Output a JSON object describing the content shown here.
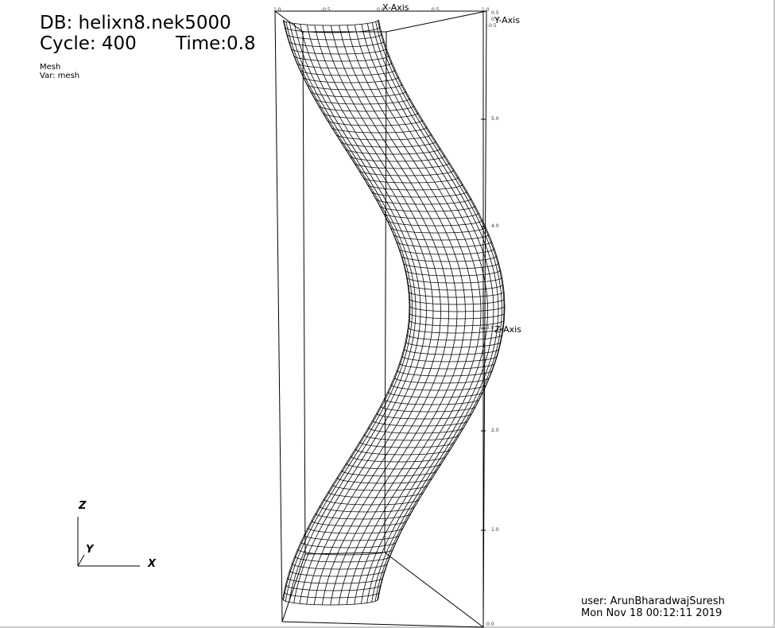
{
  "database": "DB: helixn8.nek5000",
  "cycle": "Cycle: 400",
  "time": "Time:0.8",
  "plot": {
    "type": "Mesh",
    "variable": "Var: mesh"
  },
  "axes": {
    "x_title": "X-Axis",
    "y_title": "Y-Axis",
    "z_title": "Z-Axis",
    "x_ticks": [
      "1.0",
      "-0.5",
      "0.0",
      "0.5",
      "1.0"
    ],
    "y_ticks": [
      "0.5",
      "0.0",
      "-0.5"
    ],
    "z_ticks": [
      "5.0",
      "4.0",
      "3.0",
      "2.0",
      "1.0",
      "0.0"
    ]
  },
  "triad": {
    "x": "X",
    "y": "Y",
    "z": "Z"
  },
  "user_info": {
    "user": "user: ArunBharadwajSuresh",
    "date": "Mon Nov 18 00:12:11 2019"
  },
  "colors": {
    "background": "#ffffff",
    "mesh": "#000000",
    "frame": "#c9c9c9"
  }
}
